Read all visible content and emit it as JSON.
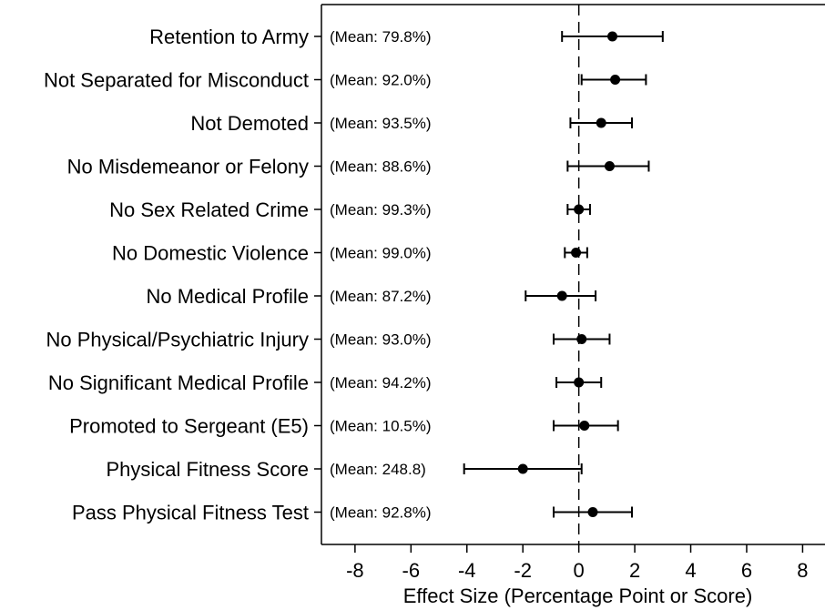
{
  "chart_data": {
    "type": "scatter",
    "orientation": "horizontal",
    "title": "",
    "xlabel": "Effect Size (Percentage Point or Score)",
    "ylabel": "",
    "xlim": [
      -9.2,
      8.8
    ],
    "x_ticks": [
      -8,
      -6,
      -4,
      -2,
      0,
      2,
      4,
      6,
      8
    ],
    "x_tick_labels": [
      "-8",
      "-6",
      "-4",
      "-2",
      "0",
      "2",
      "4",
      "6",
      "8"
    ],
    "reference_line": 0,
    "reference_line_style": "dashed",
    "grid": false,
    "legend": "none",
    "marker_color": "#000000",
    "categories": [
      "Retention to Army",
      "Not Separated for Misconduct",
      "Not Demoted",
      "No Misdemeanor or Felony",
      "No Sex Related Crime",
      "No Domestic Violence",
      "No Medical Profile",
      "No Physical/Psychiatric Injury",
      "No Significant Medical Profile",
      "Promoted to Sergeant (E5)",
      "Physical Fitness Score",
      "Pass Physical Fitness Test"
    ],
    "mean_labels": [
      "(Mean: 79.8%)",
      "(Mean: 92.0%)",
      "(Mean: 93.5%)",
      "(Mean: 88.6%)",
      "(Mean: 99.3%)",
      "(Mean: 99.0%)",
      "(Mean: 87.2%)",
      "(Mean: 93.0%)",
      "(Mean: 94.2%)",
      "(Mean: 10.5%)",
      "(Mean: 248.8)",
      "(Mean: 92.8%)"
    ],
    "estimates": [
      1.2,
      1.3,
      0.8,
      1.1,
      0.0,
      -0.1,
      -0.6,
      0.1,
      0.0,
      0.2,
      -2.0,
      0.5
    ],
    "ci_low": [
      -0.6,
      0.1,
      -0.3,
      -0.4,
      -0.4,
      -0.5,
      -1.9,
      -0.9,
      -0.8,
      -0.9,
      -4.1,
      -0.9
    ],
    "ci_high": [
      3.0,
      2.4,
      1.9,
      2.5,
      0.4,
      0.3,
      0.6,
      1.1,
      0.8,
      1.4,
      0.1,
      1.9
    ]
  }
}
